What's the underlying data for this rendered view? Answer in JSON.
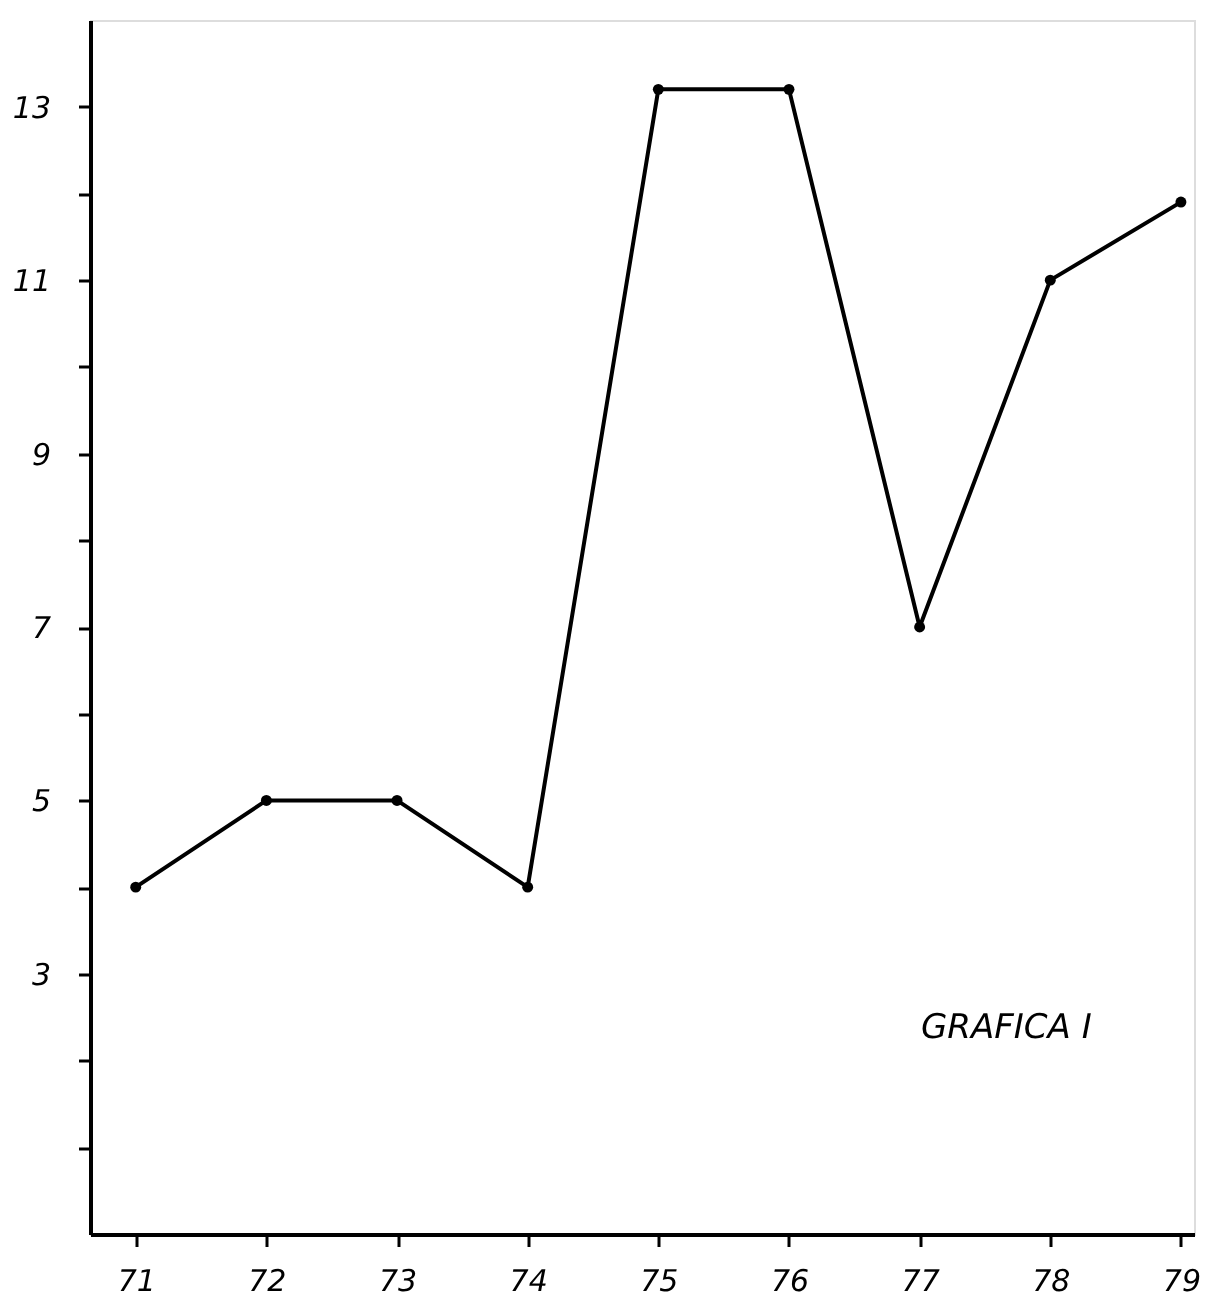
{
  "chart_data": {
    "type": "line",
    "x": [
      71,
      72,
      73,
      74,
      75,
      76,
      77,
      78,
      79
    ],
    "values": [
      4,
      5,
      5,
      4,
      13.2,
      13.2,
      7,
      11,
      11.9
    ],
    "color": "#000000",
    "marker": "circle",
    "line_style": "solid",
    "xlim": [
      70.65,
      79.1
    ],
    "xticks": [
      71,
      72,
      73,
      74,
      75,
      76,
      77,
      78,
      79
    ],
    "ylim": [
      0,
      14
    ],
    "yticks": [
      {
        "value": 1,
        "label": null
      },
      {
        "value": 2,
        "label": null
      },
      3,
      {
        "value": 4,
        "label": null
      },
      5,
      {
        "value": 6,
        "label": null
      },
      7,
      {
        "value": 8,
        "label": null
      },
      9,
      {
        "value": 10,
        "label": null
      },
      11,
      {
        "value": 12,
        "label": null
      },
      13
    ],
    "grid": false,
    "annotations": [
      "GRAFICA I"
    ]
  }
}
